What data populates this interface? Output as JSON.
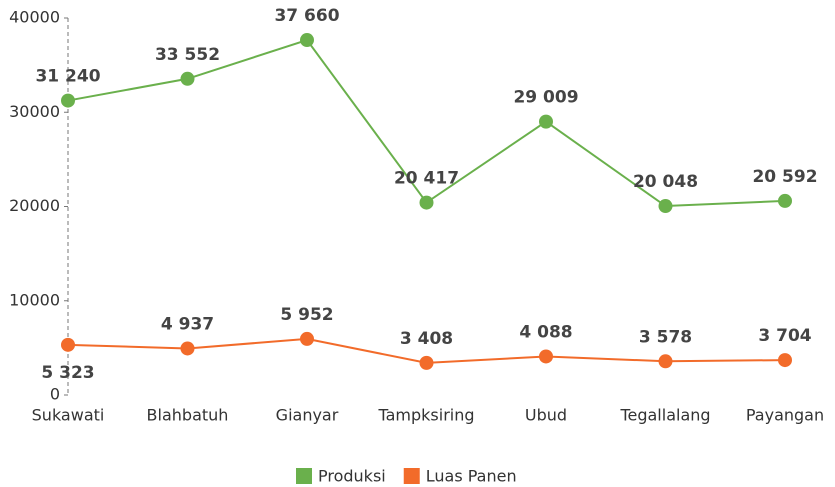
{
  "chart_data": {
    "type": "line",
    "categories": [
      "Sukawati",
      "Blahbatuh",
      "Gianyar",
      "Tampksiring",
      "Ubud",
      "Tegallalang",
      "Payangan"
    ],
    "series": [
      {
        "name": "Produksi",
        "color": "#6ab04c",
        "values": [
          31240,
          33552,
          37660,
          20417,
          29009,
          20048,
          20592
        ],
        "value_labels": [
          "31 240",
          "33 552",
          "37 660",
          "20 417",
          "29 009",
          "20 048",
          "20 592"
        ]
      },
      {
        "name": "Luas Panen",
        "color": "#f26b2a",
        "values": [
          5323,
          4937,
          5952,
          3408,
          4088,
          3578,
          3704
        ],
        "value_labels": [
          "5 323",
          "4 937",
          "5 952",
          "3 408",
          "4 088",
          "3 578",
          "3 704"
        ]
      }
    ],
    "ylim": [
      0,
      40000
    ],
    "yticks": [
      0,
      10000,
      20000,
      30000,
      40000
    ],
    "legend": "bottom"
  }
}
